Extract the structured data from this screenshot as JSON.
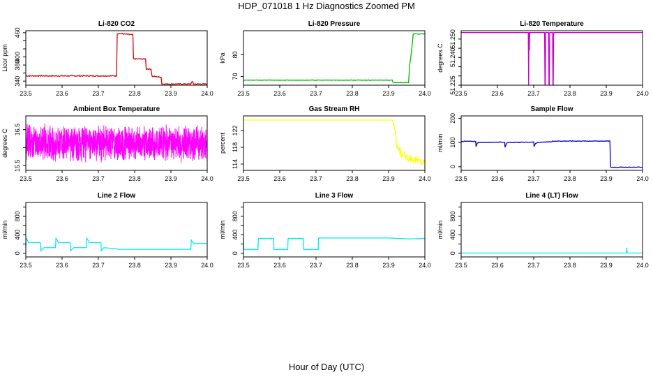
{
  "page": {
    "title": "HDP_071018  1 Hz Diagnostics Zoomed PM",
    "xlabel": "Hour of Day (UTC)"
  },
  "chart_data": [
    {
      "type": "line",
      "title": "Li-820 CO2",
      "ylabel": "Licor ppm",
      "color": "#dd0000",
      "xlim": [
        23.5,
        24.0
      ],
      "ylim": [
        330,
        465
      ],
      "xticks": [
        "23.5",
        "23.6",
        "23.7",
        "23.8",
        "23.9",
        "24.0"
      ],
      "yticks": [
        340,
        360,
        380,
        400,
        420,
        440,
        460
      ],
      "ytick_labels": [
        "340",
        "",
        "380",
        "400",
        "",
        "",
        "460"
      ],
      "noise": 1.2,
      "x": [
        23.5,
        23.75,
        23.752,
        23.765,
        23.768,
        23.795,
        23.797,
        23.83,
        23.832,
        23.845,
        23.848,
        23.873,
        23.875,
        23.955,
        23.957,
        23.96,
        23.962,
        24.0
      ],
      "y": [
        353,
        353,
        458,
        458,
        457,
        455,
        395,
        395,
        370,
        370,
        352,
        350,
        333,
        333,
        338,
        338,
        333,
        333
      ]
    },
    {
      "type": "line",
      "title": "Li-820 Pressure",
      "ylabel": "kPa",
      "color": "#00bb00",
      "xlim": [
        23.5,
        24.0
      ],
      "ylim": [
        66,
        91
      ],
      "xticks": [
        "23.5",
        "23.6",
        "23.7",
        "23.8",
        "23.9",
        "24.0"
      ],
      "yticks": [
        70,
        80
      ],
      "ytick_labels": [
        "70",
        "80"
      ],
      "noise": 0.12,
      "x": [
        23.5,
        23.91,
        23.912,
        23.955,
        23.958,
        23.962,
        23.968,
        24.0
      ],
      "y": [
        68.3,
        68.3,
        67.2,
        67.2,
        75,
        80,
        89.5,
        89.5
      ]
    },
    {
      "type": "line",
      "title": "Li-820 Temperature",
      "ylabel": "degrees C",
      "color": "#cc00cc",
      "xlim": [
        23.5,
        24.0
      ],
      "ylim": [
        51.225,
        51.2545
      ],
      "xticks": [
        "23.5",
        "23.6",
        "23.7",
        "23.8",
        "23.9",
        "24.0"
      ],
      "yticks": [
        51.225,
        51.23,
        51.235,
        51.24,
        51.245,
        51.25
      ],
      "ytick_labels": [
        "51.225",
        "",
        "",
        "51.240",
        "",
        "51.250"
      ],
      "noise": 0,
      "x": [
        23.5,
        23.685,
        23.686,
        23.687,
        23.688,
        23.689,
        23.73,
        23.731,
        23.732,
        23.733,
        23.741,
        23.742,
        23.743,
        23.744,
        23.752,
        23.753,
        23.754,
        23.755,
        24.0
      ],
      "y": [
        51.2535,
        51.2535,
        51.225,
        51.2535,
        51.244,
        51.2535,
        51.2535,
        51.225,
        51.225,
        51.2535,
        51.2535,
        51.225,
        51.225,
        51.2535,
        51.2535,
        51.225,
        51.225,
        51.2535,
        51.2535
      ]
    },
    {
      "type": "line",
      "title": "Ambient Box Temperature",
      "ylabel": "degrees C",
      "color": "#ff00ff",
      "xlim": [
        23.5,
        24.0
      ],
      "ylim": [
        15.37,
        16.88
      ],
      "xticks": [
        "23.5",
        "23.6",
        "23.7",
        "23.8",
        "23.9",
        "24.0"
      ],
      "yticks": [
        15.5,
        16.0,
        16.5
      ],
      "ytick_labels": [
        "15.5",
        "",
        "16.5"
      ],
      "noise": 0,
      "series": [
        {
          "mean": 16.12,
          "amplitude": 0.55,
          "samples": 1200
        }
      ]
    },
    {
      "type": "line",
      "title": "Gas Stream RH",
      "ylabel": "percent",
      "color": "#ffff00",
      "xlim": [
        23.5,
        24.0
      ],
      "ylim": [
        112.5,
        125.5
      ],
      "xticks": [
        "23.5",
        "23.6",
        "23.7",
        "23.8",
        "23.9",
        "24.0"
      ],
      "yticks": [
        114,
        118,
        122
      ],
      "ytick_labels": [
        "114",
        "118",
        "122"
      ],
      "noise": 0,
      "x": [
        23.5,
        23.91,
        23.915,
        23.922,
        23.93,
        23.94,
        23.96,
        23.98,
        24.0
      ],
      "y": [
        124.5,
        124.5,
        123.5,
        118.5,
        117,
        116.2,
        115.5,
        114.8,
        114.3
      ],
      "tail_noise": {
        "from": 23.915,
        "amplitude": 1.0
      }
    },
    {
      "type": "line",
      "title": "Sample Flow",
      "ylabel": "ml/min",
      "color": "#0000cc",
      "xlim": [
        23.5,
        24.0
      ],
      "ylim": [
        -15,
        210
      ],
      "xticks": [
        "23.5",
        "23.6",
        "23.7",
        "23.8",
        "23.9",
        "24.0"
      ],
      "yticks": [
        0,
        100,
        200
      ],
      "ytick_labels": [
        "0",
        "100",
        "200"
      ],
      "noise": 1.2,
      "x": [
        23.5,
        23.54,
        23.541,
        23.545,
        23.55,
        23.62,
        23.621,
        23.625,
        23.632,
        23.7,
        23.701,
        23.705,
        23.712,
        23.75,
        23.752,
        23.91,
        23.912,
        24.0
      ],
      "y": [
        105,
        105,
        85,
        98,
        100,
        102,
        82,
        96,
        100,
        102,
        83,
        96,
        100,
        103,
        106,
        106,
        -2,
        -2
      ]
    },
    {
      "type": "line",
      "title": "Line 2 Flow",
      "ylabel": "ml/min",
      "color": "#00eeee",
      "xlim": [
        23.5,
        24.0
      ],
      "ylim": [
        -80,
        1100
      ],
      "xticks": [
        "23.5",
        "23.6",
        "23.7",
        "23.8",
        "23.9",
        "24.0"
      ],
      "yticks": [
        0,
        200,
        400,
        600,
        800,
        1000
      ],
      "ytick_labels": [
        "0",
        "",
        "400",
        "",
        "800",
        ""
      ],
      "noise": 0,
      "x": [
        23.5,
        23.501,
        23.508,
        23.54,
        23.541,
        23.55,
        23.582,
        23.583,
        23.59,
        23.622,
        23.623,
        23.632,
        23.667,
        23.668,
        23.675,
        23.707,
        23.708,
        23.715,
        23.75,
        23.755,
        23.955,
        23.956,
        23.962,
        24.0
      ],
      "y": [
        120,
        330,
        230,
        230,
        50,
        120,
        120,
        330,
        230,
        230,
        50,
        120,
        120,
        330,
        230,
        230,
        50,
        120,
        95,
        85,
        85,
        290,
        210,
        210
      ]
    },
    {
      "type": "line",
      "title": "Line 3 Flow",
      "ylabel": "ml/min",
      "color": "#00eeee",
      "xlim": [
        23.5,
        24.0
      ],
      "ylim": [
        -80,
        1100
      ],
      "xticks": [
        "23.5",
        "23.6",
        "23.7",
        "23.8",
        "23.9",
        "24.0"
      ],
      "yticks": [
        0,
        200,
        400,
        600,
        800,
        1000
      ],
      "ytick_labels": [
        "0",
        "",
        "400",
        "",
        "800",
        ""
      ],
      "noise": 0,
      "x": [
        23.5,
        23.501,
        23.503,
        23.54,
        23.541,
        23.583,
        23.584,
        23.622,
        23.623,
        23.665,
        23.666,
        23.706,
        23.707,
        23.9,
        23.96,
        24.0
      ],
      "y": [
        330,
        80,
        80,
        80,
        320,
        320,
        80,
        80,
        320,
        320,
        80,
        80,
        330,
        330,
        310,
        320
      ]
    },
    {
      "type": "line",
      "title": "Line 4 (LT) Flow",
      "ylabel": "ml/min",
      "color": "#00eeee",
      "xlim": [
        23.5,
        24.0
      ],
      "ylim": [
        -80,
        1100
      ],
      "xticks": [
        "23.5",
        "23.6",
        "23.7",
        "23.8",
        "23.9",
        "24.0"
      ],
      "yticks": [
        0,
        200,
        400,
        600,
        800,
        1000
      ],
      "ytick_labels": [
        "0",
        "",
        "400",
        "",
        "800",
        ""
      ],
      "noise": 0,
      "x": [
        23.5,
        23.955,
        23.956,
        23.958,
        23.96,
        24.0
      ],
      "y": [
        5,
        5,
        110,
        5,
        5,
        5
      ]
    }
  ]
}
